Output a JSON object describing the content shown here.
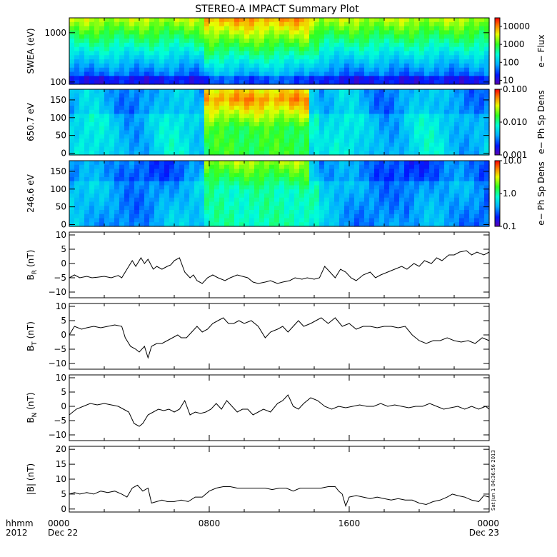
{
  "title": "STEREO-A IMPACT Summary Plot",
  "stamp": "Sat Jun 1 04:36:56 2013",
  "x_axis": {
    "row1_label": "hhmm",
    "row2_label": "2012",
    "ticks": [
      {
        "hours": 0,
        "label": "0000",
        "date": "Dec 22"
      },
      {
        "hours": 8,
        "label": "0800",
        "date": ""
      },
      {
        "hours": 16,
        "label": "1600",
        "date": ""
      },
      {
        "hours": 24,
        "label": "0000",
        "date": "Dec 23"
      }
    ],
    "range_hours": [
      0,
      24
    ]
  },
  "colors": {
    "line": "#000000",
    "axis": "#000000"
  },
  "chart_data": [
    {
      "type": "heatmap",
      "ylabel": "SWEA (eV)",
      "yscale": "log",
      "ylim": [
        90,
        2000
      ],
      "yticks": [
        {
          "v": 100,
          "label": "100"
        },
        {
          "v": 1000,
          "label": "1000"
        }
      ],
      "colorbar": {
        "label": "e− Flux",
        "scale": "log",
        "range": [
          6,
          30000
        ],
        "ticks": [
          {
            "v": 10,
            "label": "10"
          },
          {
            "v": 100,
            "label": "100"
          },
          {
            "v": 1000,
            "label": "1000"
          },
          {
            "v": 10000,
            "label": "10000"
          }
        ]
      }
    },
    {
      "type": "heatmap",
      "ylabel": "650.7 eV",
      "yscale": "linear",
      "ylim": [
        -5,
        180
      ],
      "yticks": [
        {
          "v": 0,
          "label": "0"
        },
        {
          "v": 50,
          "label": "50"
        },
        {
          "v": 100,
          "label": "100"
        },
        {
          "v": 150,
          "label": "150"
        }
      ],
      "colorbar": {
        "label": "e− Ph Sp Dens",
        "scale": "log",
        "range": [
          0.001,
          0.1
        ],
        "ticks": [
          {
            "v": 0.001,
            "label": "0.001"
          },
          {
            "v": 0.01,
            "label": "0.010"
          },
          {
            "v": 0.1,
            "label": "0.100"
          }
        ]
      }
    },
    {
      "type": "heatmap",
      "ylabel": "246.6 eV",
      "yscale": "linear",
      "ylim": [
        -5,
        180
      ],
      "yticks": [
        {
          "v": 0,
          "label": "0"
        },
        {
          "v": 50,
          "label": "50"
        },
        {
          "v": 100,
          "label": "100"
        },
        {
          "v": 150,
          "label": "150"
        }
      ],
      "colorbar": {
        "label": "e− Ph Sp Dens",
        "scale": "log",
        "range": [
          0.1,
          10
        ],
        "ticks": [
          {
            "v": 0.1,
            "label": "0.1"
          },
          {
            "v": 1,
            "label": "1.0"
          },
          {
            "v": 10,
            "label": "10.0"
          }
        ]
      }
    },
    {
      "type": "line",
      "ylabel": "B",
      "ylabel_sub": "R",
      "ylabel_unit": " (nT)",
      "ylim": [
        -12,
        11
      ],
      "yticks": [
        {
          "v": 10,
          "label": "10"
        },
        {
          "v": 5,
          "label": "5"
        },
        {
          "v": 0,
          "label": "0"
        },
        {
          "v": -5,
          "label": "−5"
        },
        {
          "v": -10,
          "label": "−10"
        }
      ],
      "x": [
        0,
        0.3,
        0.6,
        1,
        1.3,
        1.6,
        2,
        2.4,
        2.8,
        3,
        3.3,
        3.6,
        3.8,
        4.1,
        4.3,
        4.5,
        4.8,
        5,
        5.3,
        5.6,
        5.8,
        6,
        6.3,
        6.6,
        6.9,
        7.1,
        7.3,
        7.6,
        7.9,
        8.2,
        8.5,
        8.9,
        9.2,
        9.6,
        9.9,
        10.2,
        10.5,
        10.8,
        11.2,
        11.5,
        11.9,
        12.2,
        12.6,
        12.9,
        13.3,
        13.6,
        14,
        14.3,
        14.6,
        14.9,
        15.2,
        15.5,
        15.8,
        16.1,
        16.4,
        16.8,
        17.2,
        17.5,
        17.8,
        18.2,
        18.6,
        19,
        19.3,
        19.7,
        20,
        20.3,
        20.7,
        21,
        21.3,
        21.7,
        22,
        22.3,
        22.7,
        23,
        23.3,
        23.7,
        24
      ],
      "y": [
        -5,
        -4,
        -5,
        -4.5,
        -5,
        -4.8,
        -4.5,
        -5,
        -4.2,
        -5,
        -2,
        1,
        -1,
        2,
        0,
        1.5,
        -2,
        -1,
        -2,
        -1,
        -0.5,
        1,
        2,
        -3,
        -5,
        -4,
        -6,
        -7,
        -5,
        -4,
        -5,
        -6,
        -5,
        -4,
        -4.5,
        -5,
        -6.5,
        -7,
        -6.5,
        -6,
        -7,
        -6.5,
        -6,
        -5,
        -5.5,
        -5,
        -5.5,
        -5,
        -1,
        -3,
        -5,
        -2,
        -3,
        -5,
        -6,
        -4,
        -3,
        -5,
        -4,
        -3,
        -2,
        -1,
        -2,
        0,
        -1,
        1,
        0,
        2,
        1,
        3,
        3,
        4,
        4.5,
        3,
        4,
        3,
        4
      ]
    },
    {
      "type": "line",
      "ylabel": "B",
      "ylabel_sub": "T",
      "ylabel_unit": " (nT)",
      "ylim": [
        -12,
        11
      ],
      "yticks": [
        {
          "v": 10,
          "label": "10"
        },
        {
          "v": 5,
          "label": "5"
        },
        {
          "v": 0,
          "label": "0"
        },
        {
          "v": -5,
          "label": "−5"
        },
        {
          "v": -10,
          "label": "−10"
        }
      ],
      "x": [
        0,
        0.3,
        0.7,
        1,
        1.4,
        1.8,
        2.2,
        2.6,
        3,
        3.2,
        3.5,
        3.8,
        4,
        4.3,
        4.5,
        4.7,
        5,
        5.3,
        5.6,
        5.9,
        6.2,
        6.4,
        6.7,
        7,
        7.3,
        7.6,
        7.9,
        8.2,
        8.5,
        8.8,
        9.1,
        9.4,
        9.7,
        10,
        10.4,
        10.8,
        11.2,
        11.5,
        11.9,
        12.2,
        12.5,
        12.8,
        13.1,
        13.4,
        13.8,
        14.1,
        14.4,
        14.8,
        15.2,
        15.6,
        16,
        16.4,
        16.8,
        17.2,
        17.6,
        18,
        18.4,
        18.8,
        19.2,
        19.6,
        20,
        20.4,
        20.8,
        21.2,
        21.6,
        22,
        22.4,
        22.8,
        23.2,
        23.6,
        24
      ],
      "y": [
        0,
        3,
        2,
        2.5,
        3,
        2.5,
        3,
        3.5,
        3,
        -1,
        -4,
        -5,
        -6,
        -4,
        -8,
        -4,
        -3,
        -3,
        -2,
        -1,
        0,
        -1,
        -1,
        1,
        3,
        1,
        2,
        4,
        5,
        6,
        4,
        4,
        5,
        4,
        5,
        3,
        -1,
        1,
        2,
        3,
        1,
        3,
        5,
        3,
        4,
        5,
        6,
        4,
        6,
        3,
        4,
        2,
        3,
        3,
        2.5,
        3,
        3,
        2.5,
        3,
        0,
        -2,
        -3,
        -2,
        -2,
        -1,
        -2,
        -2.5,
        -2,
        -3,
        -1,
        -2
      ]
    },
    {
      "type": "line",
      "ylabel": "B",
      "ylabel_sub": "N",
      "ylabel_unit": " (nT)",
      "ylim": [
        -12,
        11
      ],
      "yticks": [
        {
          "v": 10,
          "label": "10"
        },
        {
          "v": 5,
          "label": "5"
        },
        {
          "v": 0,
          "label": "0"
        },
        {
          "v": -5,
          "label": "−5"
        },
        {
          "v": -10,
          "label": "−10"
        }
      ],
      "x": [
        0,
        0.4,
        0.8,
        1.2,
        1.6,
        2,
        2.4,
        2.8,
        3.1,
        3.4,
        3.7,
        4,
        4.2,
        4.5,
        4.8,
        5.1,
        5.4,
        5.7,
        6,
        6.3,
        6.6,
        6.9,
        7.2,
        7.5,
        7.8,
        8.1,
        8.4,
        8.7,
        9,
        9.3,
        9.6,
        9.9,
        10.2,
        10.5,
        10.8,
        11.1,
        11.5,
        11.9,
        12.2,
        12.5,
        12.8,
        13.1,
        13.4,
        13.8,
        14.2,
        14.6,
        15,
        15.4,
        15.8,
        16.2,
        16.6,
        17,
        17.4,
        17.8,
        18.2,
        18.6,
        19,
        19.4,
        19.8,
        20.2,
        20.6,
        21,
        21.4,
        21.8,
        22.2,
        22.6,
        23,
        23.4,
        23.8,
        24
      ],
      "y": [
        -3,
        -1,
        0,
        1,
        0.5,
        1,
        0.5,
        0,
        -1,
        -2,
        -6,
        -7,
        -6,
        -3,
        -2,
        -1,
        -1.5,
        -1,
        -2,
        -1,
        2,
        -3,
        -2,
        -2.5,
        -2,
        -1,
        1,
        -1,
        2,
        0,
        -2,
        -1,
        -1,
        -3,
        -2,
        -1,
        -2,
        1,
        2,
        4,
        0,
        -1,
        1,
        3,
        2,
        0,
        -1,
        0,
        -0.5,
        0,
        0.5,
        0,
        0,
        1,
        0,
        0.5,
        0,
        -0.5,
        0,
        0,
        1,
        0,
        -1,
        -0.5,
        0,
        -1,
        0,
        -1,
        0,
        -1
      ]
    },
    {
      "type": "line",
      "ylabel": "|B| (nT)",
      "ylim": [
        -1,
        21
      ],
      "yticks": [
        {
          "v": 20,
          "label": "20"
        },
        {
          "v": 15,
          "label": "15"
        },
        {
          "v": 10,
          "label": "10"
        },
        {
          "v": 5,
          "label": "5"
        },
        {
          "v": 0,
          "label": "0"
        }
      ],
      "x": [
        0,
        0.3,
        0.6,
        1,
        1.4,
        1.8,
        2.2,
        2.6,
        3,
        3.3,
        3.6,
        3.9,
        4.2,
        4.5,
        4.7,
        5,
        5.3,
        5.6,
        6,
        6.4,
        6.8,
        7.2,
        7.6,
        8,
        8.4,
        8.8,
        9.2,
        9.6,
        10,
        10.4,
        10.8,
        11.2,
        11.6,
        12,
        12.4,
        12.8,
        13.2,
        13.6,
        14,
        14.4,
        14.8,
        15.2,
        15.4,
        15.6,
        15.8,
        16,
        16.4,
        16.8,
        17.2,
        17.6,
        18,
        18.4,
        18.8,
        19.2,
        19.6,
        20,
        20.4,
        20.8,
        21.2,
        21.6,
        21.9,
        22.2,
        22.6,
        23,
        23.4,
        23.7,
        24
      ],
      "y": [
        5,
        5.5,
        5,
        5.5,
        5,
        6,
        5.5,
        6,
        5,
        4,
        7,
        8,
        6,
        7,
        2,
        2.5,
        3,
        2.5,
        2.5,
        3,
        2.5,
        4,
        4,
        6,
        7,
        7.5,
        7.5,
        7,
        7,
        7,
        7,
        7,
        6.5,
        7,
        7,
        6,
        7,
        7,
        7,
        7,
        7.5,
        7.5,
        6,
        5,
        1,
        4,
        4.5,
        4,
        3.5,
        4,
        3.5,
        3,
        3.5,
        3,
        3,
        2,
        1.5,
        2.5,
        3,
        4,
        5,
        4.5,
        4,
        3,
        2.5,
        4.5,
        4
      ]
    }
  ]
}
